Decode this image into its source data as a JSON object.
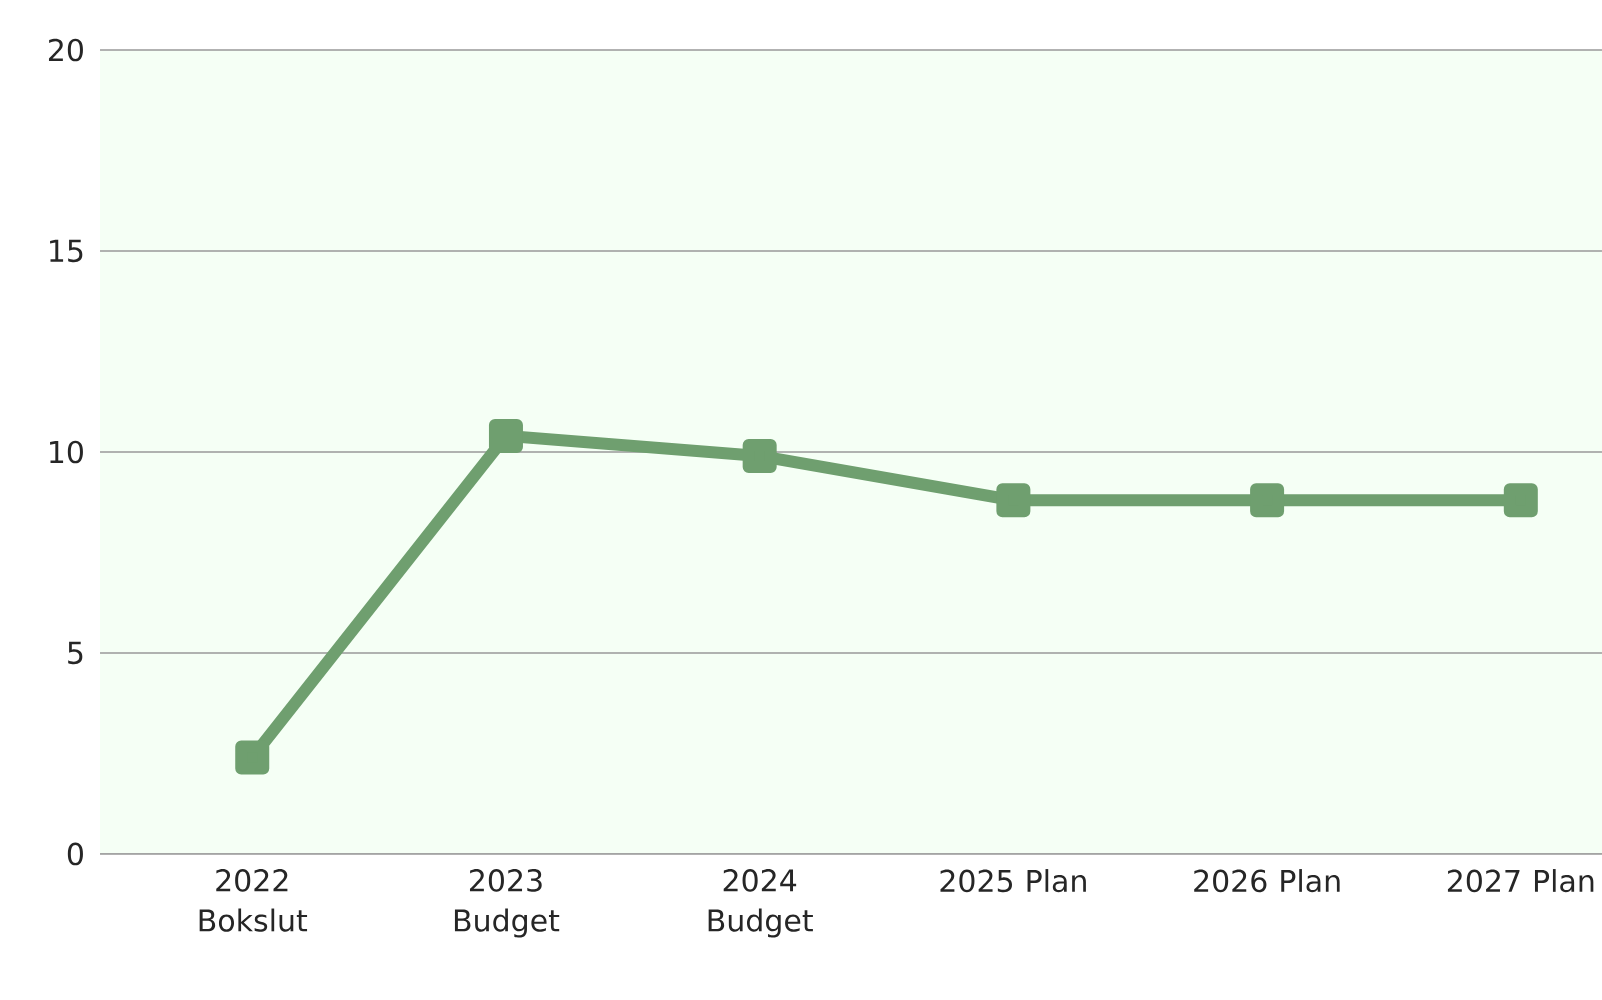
{
  "chart_data": {
    "type": "line",
    "categories": [
      "2022 Bokslut",
      "2023 Budget",
      "2024 Budget",
      "2025 Plan",
      "2026 Plan",
      "2027 Plan"
    ],
    "series": [
      {
        "color": "#6f9f6f",
        "values": [
          2.4,
          10.4,
          9.9,
          8.8,
          8.8,
          8.8
        ]
      }
    ],
    "ylim": [
      0,
      20
    ],
    "yticks": [
      0,
      5,
      10,
      15,
      20
    ],
    "grid": "y",
    "marker": "square",
    "line_style": "solid"
  }
}
